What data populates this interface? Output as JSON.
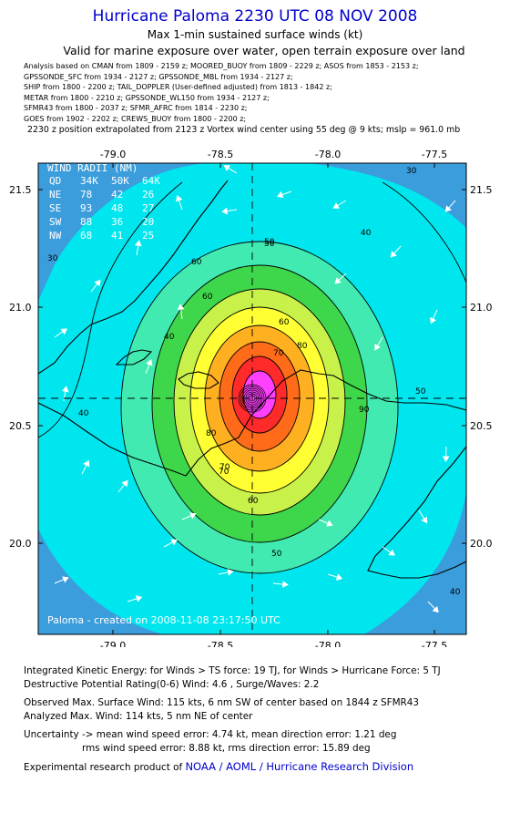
{
  "header": {
    "title": "Hurricane Paloma 2230 UTC 08 NOV 2008",
    "subtitle": "Max 1-min sustained surface winds (kt)",
    "valid_line": "Valid for marine exposure over water, open terrain exposure over land",
    "sources": [
      "Analysis based on  CMAN from 1809 - 2159 z;  MOORED_BUOY from 1809 - 2229 z;  ASOS from 1853 - 2153 z;",
      "GPSSONDE_SFC from 1934 - 2127 z;  GPSSONDE_MBL from 1934 - 2127 z;",
      "SHIP from 1800 - 2200 z;  TAIL_DOPPLER (User-defined adjusted) from 1813 - 1842 z;",
      "METAR from 1800 - 2210 z;  GPSSONDE_WL150 from 1934 - 2127 z;",
      "SFMR43 from 1800 - 2037 z;  SFMR_AFRC from 1814 - 2230 z;",
      "GOES from 1902 - 2202 z;  CREWS_BUOY from 1800 - 2200 z;"
    ],
    "position_line": "2230 z position extrapolated from 2123 z Vortex wind center using 55 deg @ 9 kts; mslp = 961.0 mb"
  },
  "map": {
    "lon_ticks": [
      "-79.0",
      "-78.5",
      "-78.0",
      "-77.5"
    ],
    "lat_ticks": [
      "21.5",
      "21.0",
      "20.5",
      "20.0"
    ],
    "lon_range": [
      -79.3,
      -77.3
    ],
    "lat_range": [
      19.6,
      21.6
    ],
    "center": {
      "lon": -78.3,
      "lat": 20.62
    },
    "contour_labels": [
      "30",
      "40",
      "50",
      "60",
      "70",
      "80",
      "90",
      "30",
      "40",
      "40",
      "50",
      "60",
      "70",
      "80",
      "50",
      "60",
      "70",
      "40",
      "50",
      "60"
    ],
    "credit": "Paloma - created on 2008-11-08 23:17:50 UTC",
    "colors": {
      "30": "#3b9ddc",
      "40": "#00e6ee",
      "50": "#40eab0",
      "60": "#3ed64a",
      "70": "#c8f24a",
      "80": "#ffff33",
      "90": "#ffb020",
      "100": "#ff6b18",
      "110": "#ff2a2a",
      "120": "#ff40ff"
    }
  },
  "wind_radii": {
    "title": "WIND RADII (NM)",
    "header": [
      "QD",
      "34K",
      "50K",
      "64K"
    ],
    "rows": [
      [
        "NE",
        "78",
        "42",
        "26"
      ],
      [
        "SE",
        "93",
        "48",
        "27"
      ],
      [
        "SW",
        "88",
        "36",
        "20"
      ],
      [
        "NW",
        "68",
        "41",
        "25"
      ]
    ]
  },
  "footer": {
    "ike": "Integrated Kinetic Energy:  for Winds > TS force: 19 TJ,  for Winds > Hurricane Force: 5 TJ",
    "dpr": "Destructive Potential Rating(0-6)   Wind: 4.6 , Surge/Waves: 2.2",
    "obs_max": "Observed Max. Surface Wind: 115 kts, 6 nm SW of center based on 1844 z SFMR43",
    "ana_max": "Analyzed Max. Wind: 114 kts, 5 nm NE of center",
    "unc1": "Uncertainty -> mean wind speed error: 4.74 kt,   mean direction error: 1.21 deg",
    "unc2": "rms wind speed error: 8.88 kt,   rms direction error: 15.89 deg",
    "credit_prefix": "Experimental research product of",
    "credit_org": "NOAA / AOML / Hurricane Research Division"
  }
}
